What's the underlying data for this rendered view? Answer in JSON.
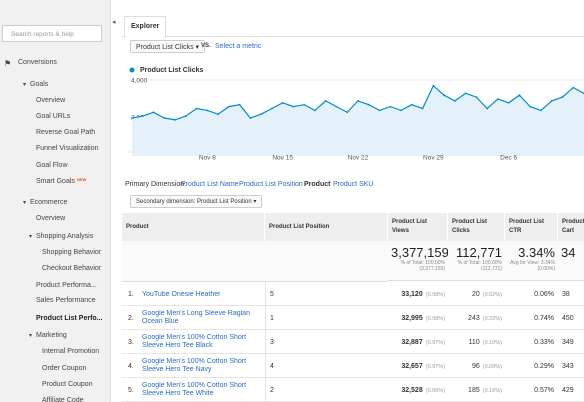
{
  "sidebar": {
    "search": "Search reports & help",
    "items": [
      "Conversions",
      "Goals",
      "Overview",
      "Goal URLs",
      "Reverse Goal Path",
      "Funnel Visualization",
      "Goal Flow",
      "Smart Goals",
      "Ecommerce",
      "Overview",
      "Shopping Analysis",
      "Shopping Behavior",
      "Checkout Behavior",
      "Product Performa...",
      "Sales Performance",
      "Product List Perfo...",
      "Marketing",
      "Internal Promotion",
      "Order Coupon",
      "Product Coupon",
      "Affiliate Code"
    ],
    "badge": "NEW"
  },
  "tab": "Explorer",
  "metric_select": "Product List Clicks",
  "vs": "VS.",
  "select_metric": "Select a metric",
  "chart_data": {
    "type": "line",
    "categories": [
      null,
      null,
      null,
      null,
      null,
      null,
      null,
      "Nov 8",
      null,
      null,
      null,
      null,
      null,
      null,
      "Nov 15",
      null,
      null,
      null,
      null,
      null,
      null,
      "Nov 22",
      null,
      null,
      null,
      null,
      null,
      null,
      "Nov 29",
      null,
      null,
      null,
      null,
      null,
      null,
      "Dec 6",
      null,
      null,
      null,
      null,
      null,
      null,
      null
    ],
    "series": [
      {
        "name": "Product List Clicks",
        "color": "#058dc7",
        "values": [
          2000,
          2100,
          2300,
          2000,
          1900,
          2100,
          2500,
          2400,
          2200,
          2600,
          2700,
          2000,
          2200,
          2500,
          2800,
          2600,
          2700,
          2400,
          2900,
          2600,
          2300,
          2900,
          2700,
          2400,
          2600,
          2400,
          2700,
          2500,
          3700,
          3200,
          2900,
          3300,
          3100,
          2500,
          3000,
          2800,
          3200,
          2600,
          2400,
          2900,
          3100,
          3600,
          3300
        ]
      }
    ],
    "ylim": [
      0,
      4000
    ],
    "yticks": [
      {
        "value": 2000,
        "label": "2,000"
      },
      {
        "value": 4000,
        "label": "4,000"
      }
    ],
    "grid": true
  },
  "primary_dimension": {
    "label": "Primary Dimension:",
    "options": [
      "Product List Name",
      "Product List Position",
      "Product",
      "Product SKU"
    ]
  },
  "secondary_dimension": "Secondary dimension: Product List Position",
  "table": {
    "headers": [
      "Product",
      "Product List Position",
      "Product List Views",
      "Product List Clicks",
      "Product List CTR",
      "Product Cart"
    ],
    "totals": [
      {
        "value": "3,377,159",
        "note": "% of Total: 100.00% (3,377,159)"
      },
      {
        "value": "112,771",
        "note": "% of Total: 100.00% (112,771)"
      },
      {
        "value": "3.34%",
        "note": "Avg for View: 3.34% (0.00%)"
      },
      {
        "value": "34"
      }
    ],
    "rows": [
      {
        "n": "1.",
        "product": "YouTube Onesie Heather",
        "position": "5",
        "views": "33,120",
        "views_pct": "(0.98%)",
        "clicks": "20",
        "clicks_pct": "(0.02%)",
        "ctr": "0.06%",
        "cart": "38"
      },
      {
        "n": "2.",
        "product": "Google Men's Long Sleeve Raglan Ocean Blue",
        "position": "1",
        "views": "32,995",
        "views_pct": "(0.98%)",
        "clicks": "243",
        "clicks_pct": "(0.22%)",
        "ctr": "0.74%",
        "cart": "450"
      },
      {
        "n": "3.",
        "product": "Google Men's 100% Cotton Short Sleeve Hero Tee Black",
        "position": "3",
        "views": "32,887",
        "views_pct": "(0.97%)",
        "clicks": "110",
        "clicks_pct": "(0.10%)",
        "ctr": "0.33%",
        "cart": "349"
      },
      {
        "n": "4.",
        "product": "Google Men's 100% Cotton Short Sleeve Hero Tee Navy",
        "position": "4",
        "views": "32,657",
        "views_pct": "(0.97%)",
        "clicks": "96",
        "clicks_pct": "(0.09%)",
        "ctr": "0.29%",
        "cart": "343"
      },
      {
        "n": "5.",
        "product": "Google Men's 100% Cotton Short Sleeve Hero Tee White",
        "position": "2",
        "views": "32,528",
        "views_pct": "(0.96%)",
        "clicks": "185",
        "clicks_pct": "(0.16%)",
        "ctr": "0.57%",
        "cart": "429"
      }
    ]
  }
}
